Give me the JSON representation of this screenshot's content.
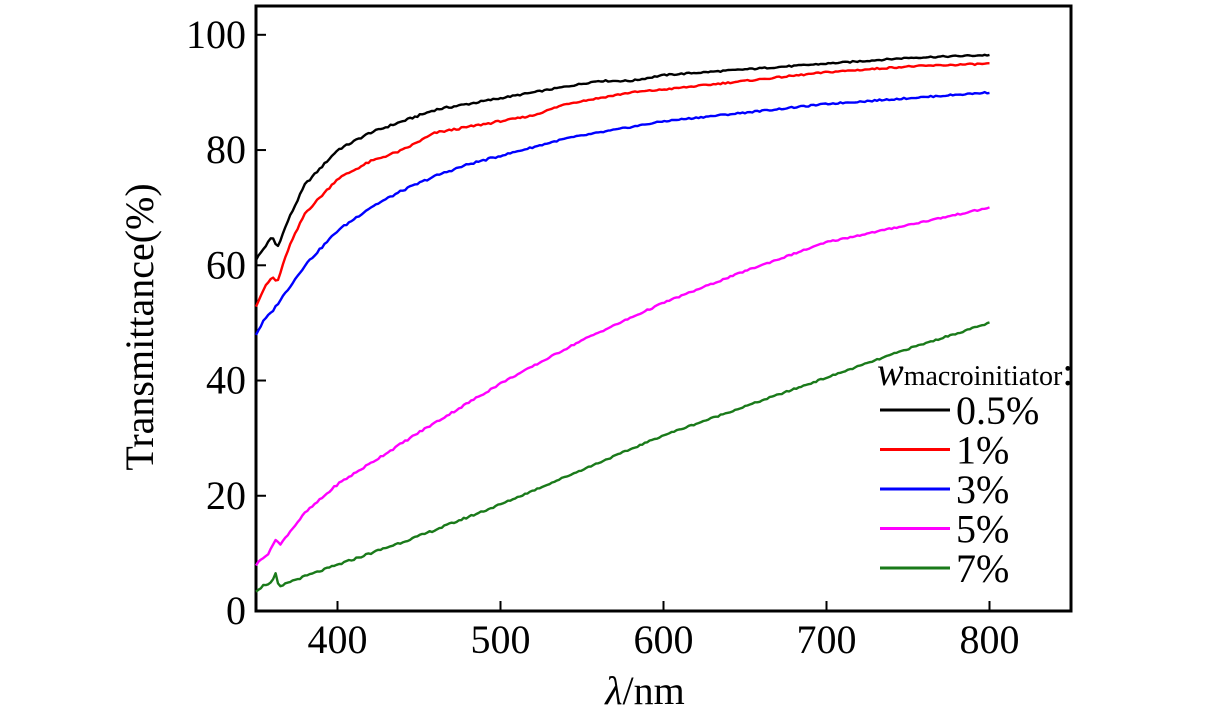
{
  "chart_data": {
    "type": "line",
    "xlabel_symbol": "λ",
    "xlabel_unit": "/nm",
    "ylabel": "Transmittance(%)",
    "xlim": [
      350,
      850
    ],
    "ylim": [
      0,
      105
    ],
    "xticks": [
      400,
      500,
      600,
      700,
      800
    ],
    "yticks": [
      0,
      20,
      40,
      60,
      80,
      100
    ],
    "legend": {
      "title_var": "w",
      "title_sub": "macroinitiator",
      "title_suffix": ":",
      "placement": "lower-right"
    },
    "series": [
      {
        "name": "0.5%",
        "color": "#000000",
        "x": [
          350,
          355,
          360,
          363,
          370,
          380,
          390,
          400,
          420,
          440,
          460,
          480,
          500,
          520,
          540,
          560,
          580,
          600,
          650,
          700,
          750,
          800
        ],
        "values": [
          61,
          63,
          65,
          63,
          68,
          74,
          77,
          80,
          83,
          85,
          87,
          88,
          89,
          90,
          91,
          92,
          92,
          93,
          94,
          95,
          96,
          96.5
        ]
      },
      {
        "name": "1%",
        "color": "#ff0000",
        "x": [
          350,
          355,
          360,
          363,
          370,
          380,
          390,
          400,
          420,
          440,
          460,
          480,
          500,
          520,
          540,
          560,
          580,
          600,
          650,
          700,
          750,
          800
        ],
        "values": [
          53,
          56,
          58,
          57,
          63,
          69,
          72,
          75,
          78,
          80,
          83,
          84,
          85,
          86,
          88,
          89,
          90,
          90.5,
          92,
          93.5,
          94.5,
          95
        ]
      },
      {
        "name": "3%",
        "color": "#0000ff",
        "x": [
          350,
          355,
          360,
          370,
          380,
          390,
          400,
          420,
          440,
          460,
          480,
          500,
          520,
          540,
          560,
          580,
          600,
          650,
          700,
          750,
          800
        ],
        "values": [
          48,
          50.5,
          52,
          56,
          60,
          63,
          66,
          70,
          73,
          75.5,
          77.5,
          79,
          80.5,
          82,
          83,
          84,
          85,
          86.5,
          88,
          89,
          90
        ]
      },
      {
        "name": "5%",
        "color": "#ff00ff",
        "x": [
          350,
          355,
          358,
          362,
          365,
          370,
          380,
          400,
          450,
          500,
          550,
          600,
          650,
          700,
          750,
          800
        ],
        "values": [
          8,
          9.5,
          10,
          12.5,
          11.5,
          13.5,
          17,
          22,
          31,
          39.5,
          47,
          53.5,
          59,
          64,
          67,
          70
        ]
      },
      {
        "name": "7%",
        "color": "#1a7a1a",
        "x": [
          350,
          355,
          360,
          362,
          364,
          370,
          400,
          450,
          500,
          550,
          600,
          650,
          700,
          750,
          800
        ],
        "values": [
          3.5,
          4.5,
          5,
          6.5,
          4,
          5,
          8,
          13,
          18.5,
          24.5,
          30.5,
          35.5,
          40.5,
          45.5,
          50
        ]
      }
    ]
  }
}
